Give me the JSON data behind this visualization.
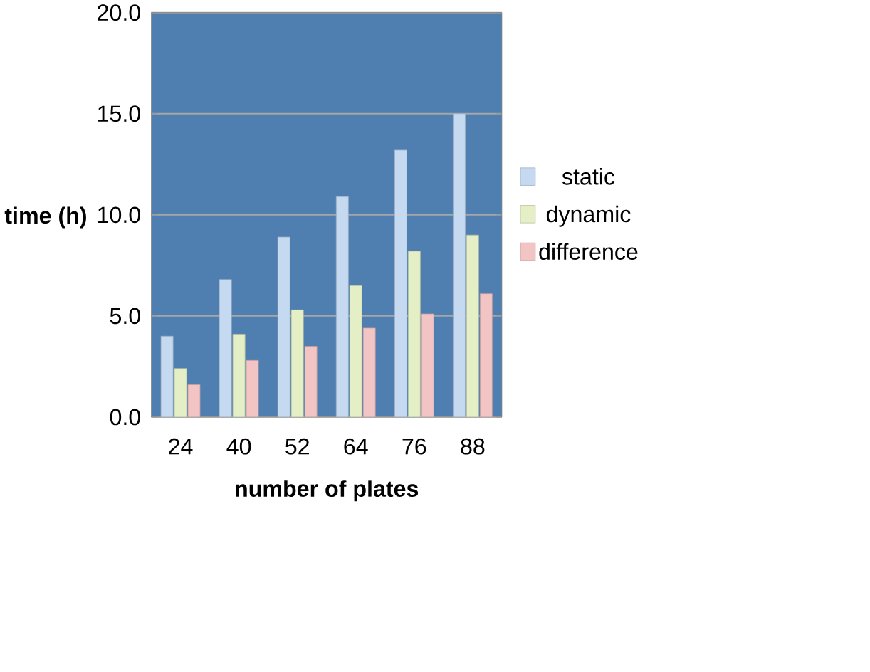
{
  "chart_data": {
    "type": "bar",
    "xlabel": "number of plates",
    "ylabel": "time (h)",
    "categories": [
      "24",
      "40",
      "52",
      "64",
      "76",
      "88"
    ],
    "series": [
      {
        "name": "static",
        "color": "#c5d9f1",
        "values": [
          4.0,
          6.8,
          8.9,
          10.9,
          13.2,
          15.0
        ]
      },
      {
        "name": "dynamic",
        "color": "#e4efc6",
        "values": [
          2.4,
          4.1,
          5.3,
          6.5,
          8.2,
          9.0
        ]
      },
      {
        "name": "difference",
        "color": "#f2c4c4",
        "values": [
          1.6,
          2.8,
          3.5,
          4.4,
          5.1,
          6.1
        ]
      }
    ],
    "ylim": [
      0,
      20
    ],
    "yticks": [
      {
        "value": 0,
        "label": "0.0"
      },
      {
        "value": 5,
        "label": "5.0"
      },
      {
        "value": 10,
        "label": "10.0"
      },
      {
        "value": 15,
        "label": "15.0"
      },
      {
        "value": 20,
        "label": "20.0"
      }
    ],
    "grid": "y",
    "legend": "right"
  }
}
